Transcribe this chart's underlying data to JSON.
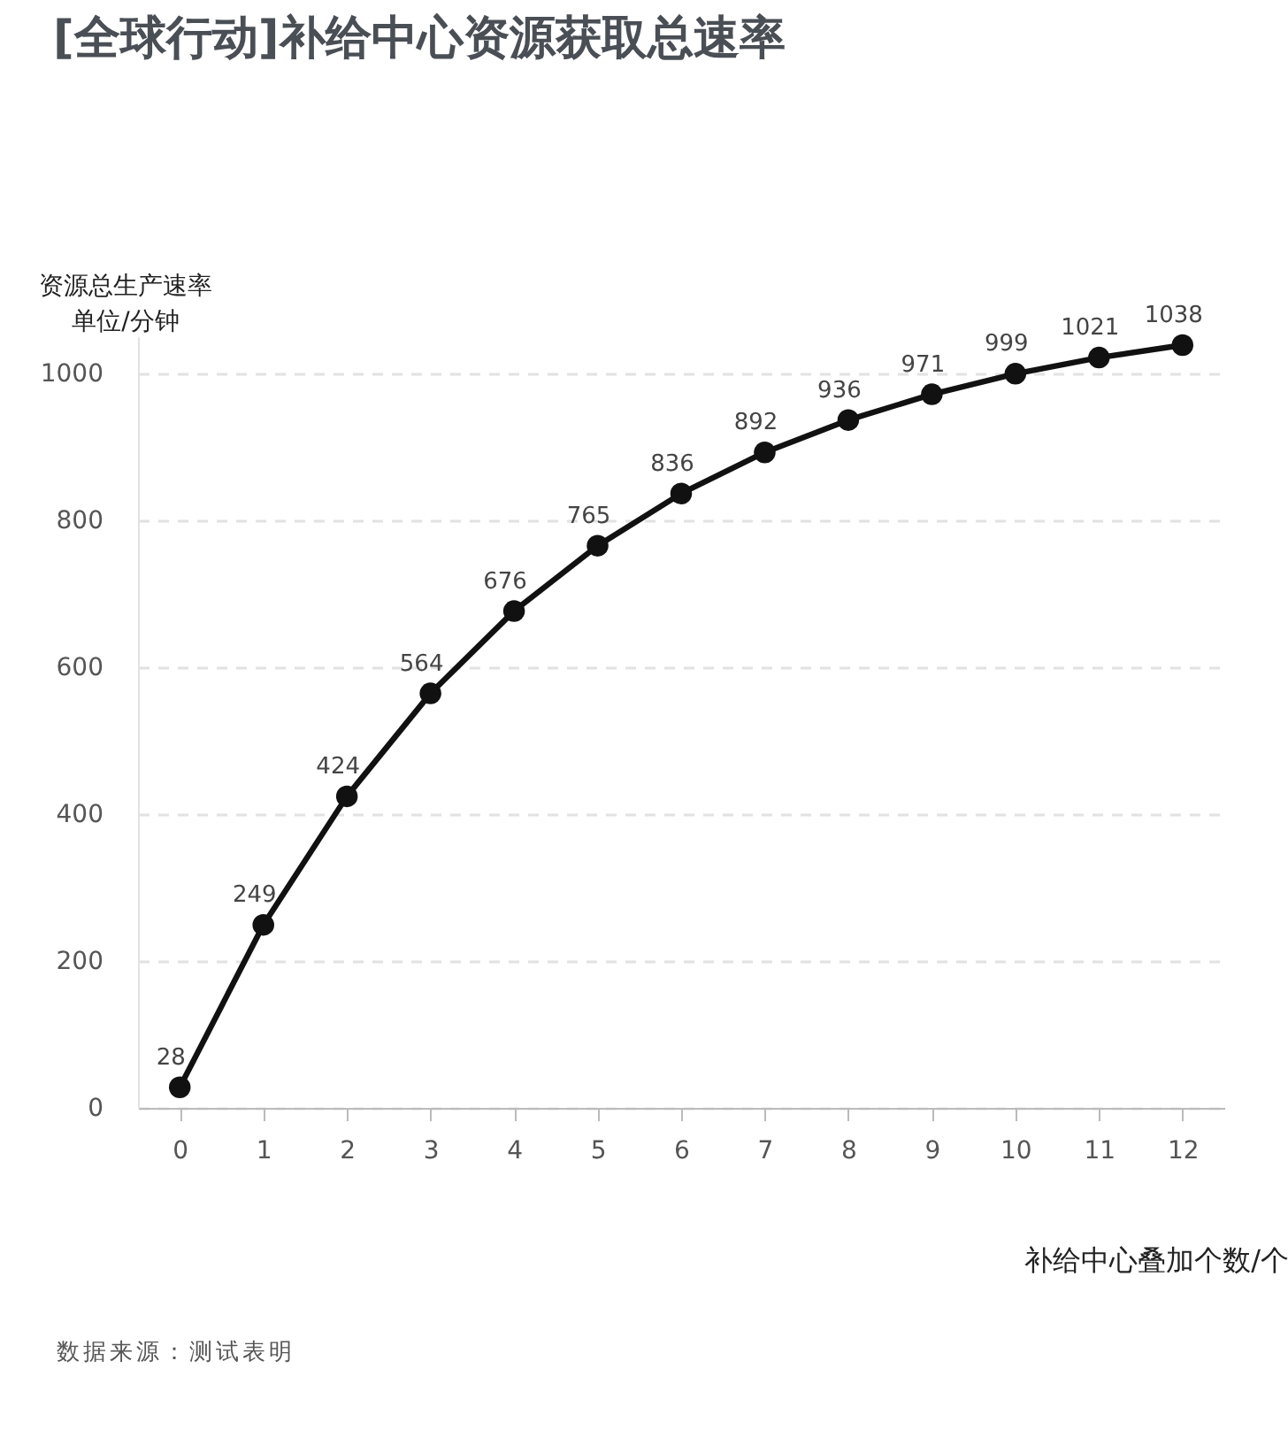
{
  "chart_data": {
    "type": "line",
    "title": "[全球行动]补给中心资源获取总速率",
    "ylabel": "资源总生产速率单位/分钟",
    "xlabel": "补给中心叠加个数/个",
    "annotations": [
      "数据来源：测试表明"
    ],
    "x": [
      0,
      1,
      2,
      3,
      4,
      5,
      6,
      7,
      8,
      9,
      10,
      11,
      12
    ],
    "series": [
      {
        "color": "#111111",
        "values": [
          28,
          249,
          424,
          564,
          676,
          765,
          836,
          892,
          936,
          971,
          999,
          1021,
          1038
        ]
      }
    ],
    "xlim": [
      -0.5,
      12.5
    ],
    "xticks": [
      0,
      1,
      2,
      3,
      4,
      5,
      6,
      7,
      8,
      9,
      10,
      11,
      12
    ],
    "ylim": [
      0,
      1050
    ],
    "yticks": [
      0,
      200,
      400,
      600,
      800,
      1000
    ],
    "grid": "y",
    "marker": "circle",
    "line_style": "solid",
    "data_labels": true
  }
}
